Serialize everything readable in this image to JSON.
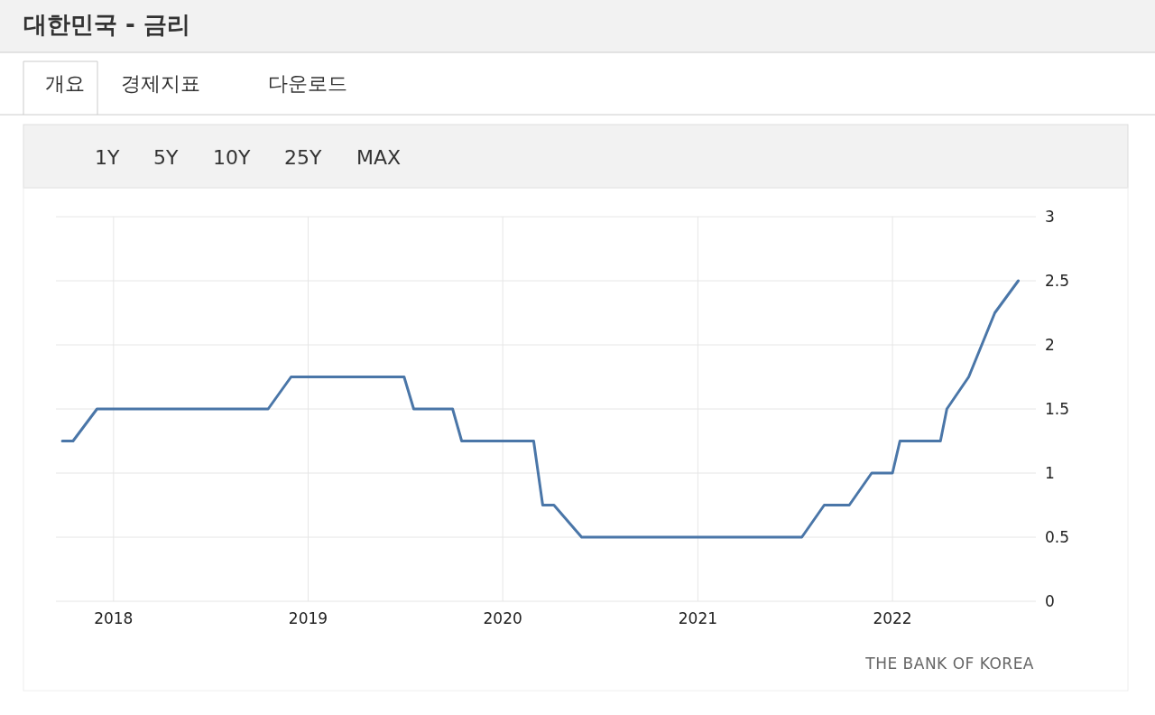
{
  "chart_data": {
    "type": "line",
    "title": "대한민국 - 금리",
    "annotations": [
      "개요",
      "경제지표",
      "다운로드",
      "1Y",
      "5Y",
      "10Y",
      "25Y",
      "MAX",
      "THE BANK OF KOREA"
    ],
    "x": [
      "2017-09-27",
      "2017-10-17",
      "2017-12-01",
      "2018-10-18",
      "2018-11-30",
      "2019-06-30",
      "2019-07-18",
      "2019-09-29",
      "2019-10-16",
      "2020-02-28",
      "2020-03-16",
      "2020-04-06",
      "2020-05-28",
      "2021-07-15",
      "2021-08-26",
      "2021-10-12",
      "2021-11-23",
      "2022-01-01",
      "2022-01-15",
      "2022-04-01",
      "2022-04-13",
      "2022-05-24",
      "2022-07-12",
      "2022-08-25"
    ],
    "series": [
      {
        "color": "#4a76a8",
        "values": [
          1.25,
          1.25,
          1.5,
          1.5,
          1.75,
          1.75,
          1.5,
          1.5,
          1.25,
          1.25,
          0.75,
          0.75,
          0.5,
          0.5,
          0.75,
          0.75,
          1,
          1,
          1.25,
          1.25,
          1.5,
          1.75,
          2.25,
          2.5
        ]
      }
    ],
    "xlim": [
      "2017-09-15",
      "2022-09-27"
    ],
    "xticks": [
      {
        "value": "2018-01-01",
        "label": "2018"
      },
      {
        "value": "2019-01-01",
        "label": "2019"
      },
      {
        "value": "2020-01-01",
        "label": "2020"
      },
      {
        "value": "2021-01-01",
        "label": "2021"
      },
      {
        "value": "2022-01-01",
        "label": "2022"
      }
    ],
    "ylim": [
      0,
      3
    ],
    "yticks": [
      0,
      0.5,
      1,
      1.5,
      2,
      2.5,
      3
    ],
    "grid": true,
    "marker": "none",
    "line_style": "solid"
  }
}
